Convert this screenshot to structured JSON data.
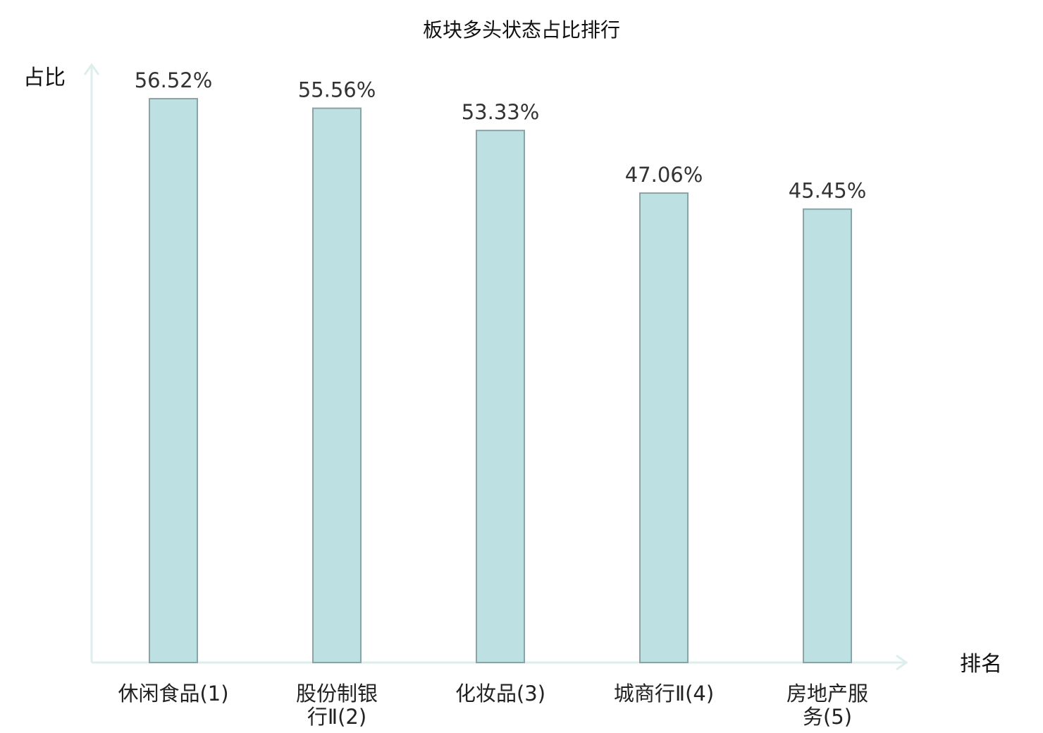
{
  "chart_data": {
    "type": "bar",
    "title": "板块多头状态占比排行",
    "ylabel": "占比",
    "xlabel": "排名",
    "categories": [
      {
        "lines": [
          "休闲食品(1)"
        ],
        "highlight": false
      },
      {
        "lines": [
          "股份制银",
          "行Ⅱ(2)"
        ],
        "highlight": true
      },
      {
        "lines": [
          "化妆品(3)"
        ],
        "highlight": false
      },
      {
        "lines": [
          "城商行Ⅱ(4)"
        ],
        "highlight": false
      },
      {
        "lines": [
          "房地产服",
          "务(5)"
        ],
        "highlight": false
      }
    ],
    "values": [
      56.52,
      55.56,
      53.33,
      47.06,
      45.45
    ],
    "value_labels": [
      "56.52%",
      "55.56%",
      "53.33%",
      "47.06%",
      "45.45%"
    ],
    "ylim": [
      0,
      56.52
    ],
    "grid": false,
    "legend": "none",
    "colors": {
      "bar_fill": "#bde0e2",
      "bar_stroke": "#8aa3a5",
      "axis": "#dcefed",
      "highlight_label": "#dd1111",
      "label": "#222222"
    }
  }
}
